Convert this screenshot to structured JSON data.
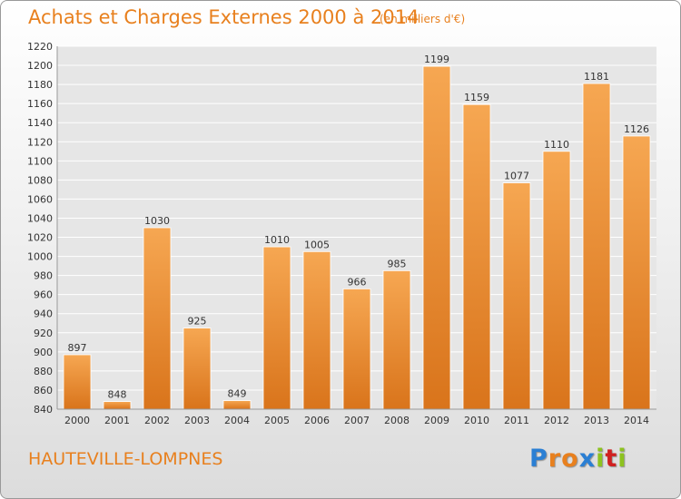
{
  "title": "Achats et Charges Externes 2000 à 2014",
  "subtitle": "(en milliers d'€)",
  "location": "HAUTEVILLE-LOMPNES",
  "logo": {
    "text": "Proxiti",
    "colors": [
      "#2a7fd4",
      "#e8801e",
      "#e8801e",
      "#2a7fd4",
      "#8dc21f",
      "#d02020",
      "#8dc21f"
    ]
  },
  "colors": {
    "title": "#e8801e",
    "bar_top": "#f6a752",
    "bar_bottom": "#d9741b",
    "grid": "#ffffff"
  },
  "chart_data": {
    "type": "bar",
    "categories": [
      "2000",
      "2001",
      "2002",
      "2003",
      "2004",
      "2005",
      "2006",
      "2007",
      "2008",
      "2009",
      "2010",
      "2011",
      "2012",
      "2013",
      "2014"
    ],
    "values": [
      897,
      848,
      1030,
      925,
      849,
      1010,
      1005,
      966,
      985,
      1199,
      1159,
      1077,
      1110,
      1181,
      1126
    ],
    "title": "Achats et Charges Externes 2000 à 2014",
    "xlabel": "",
    "ylabel": "",
    "ylim": [
      840,
      1220
    ],
    "yticks": [
      840,
      860,
      880,
      900,
      920,
      940,
      960,
      980,
      1000,
      1020,
      1040,
      1060,
      1080,
      1100,
      1120,
      1140,
      1160,
      1180,
      1200,
      1220
    ],
    "grid": true,
    "data_labels": true
  }
}
